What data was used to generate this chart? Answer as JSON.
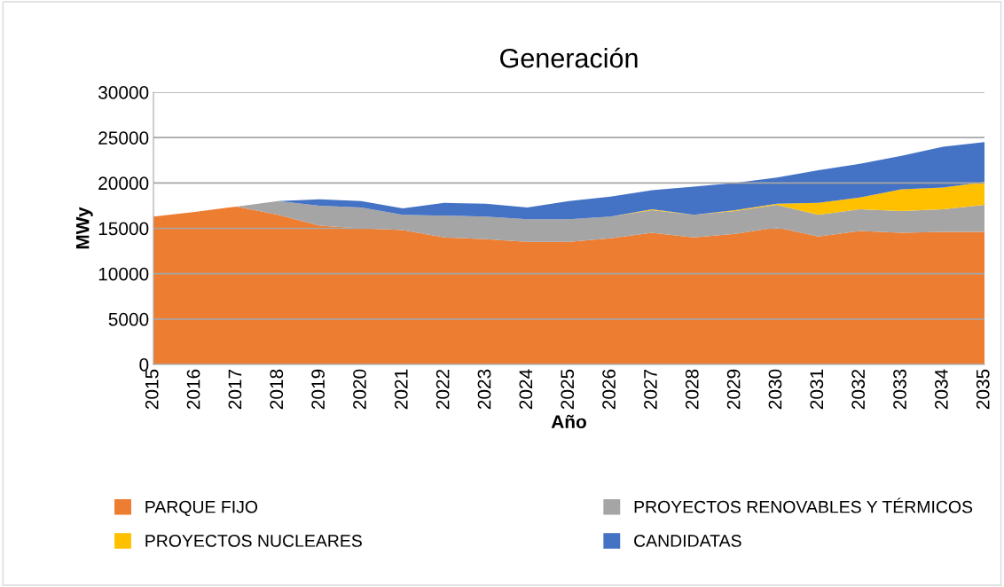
{
  "chart_data": {
    "type": "area",
    "stacked": true,
    "title": "Generación",
    "xlabel": "Año",
    "ylabel": "MWy",
    "categories": [
      "2015",
      "2016",
      "2017",
      "2018",
      "2019",
      "2020",
      "2021",
      "2022",
      "2023",
      "2024",
      "2025",
      "2026",
      "2027",
      "2028",
      "2029",
      "2030",
      "2031",
      "2032",
      "2033",
      "2034",
      "2035"
    ],
    "series": [
      {
        "name": "PARQUE FIJO",
        "color": "#ed7d31",
        "values": [
          16300,
          16800,
          17400,
          16500,
          15300,
          15000,
          14800,
          14000,
          13800,
          13500,
          13500,
          13900,
          14500,
          14000,
          14400,
          15100,
          14100,
          14700,
          14500,
          14600,
          14600
        ]
      },
      {
        "name": "PROYECTOS RENOVABLES Y TÉRMICOS",
        "color": "#a5a5a5",
        "values": [
          0,
          0,
          0,
          1500,
          2200,
          2300,
          1700,
          2400,
          2500,
          2500,
          2500,
          2400,
          2500,
          2500,
          2500,
          2500,
          2400,
          2400,
          2400,
          2500,
          3000
        ]
      },
      {
        "name": "PROYECTOS NUCLEARES",
        "color": "#ffc000",
        "values": [
          0,
          0,
          0,
          0,
          0,
          0,
          0,
          0,
          0,
          0,
          0,
          0,
          100,
          0,
          100,
          100,
          1300,
          1300,
          2400,
          2400,
          2500
        ]
      },
      {
        "name": "CANDIDATAS",
        "color": "#4472c4",
        "values": [
          0,
          0,
          0,
          0,
          700,
          700,
          700,
          1400,
          1400,
          1300,
          2000,
          2200,
          2100,
          3100,
          3000,
          2900,
          3600,
          3700,
          3700,
          4500,
          4400
        ]
      }
    ],
    "ylim": [
      0,
      30000
    ],
    "yticks": [
      0,
      5000,
      10000,
      15000,
      20000,
      25000,
      30000
    ],
    "grid": "y",
    "legend": "bottom"
  }
}
